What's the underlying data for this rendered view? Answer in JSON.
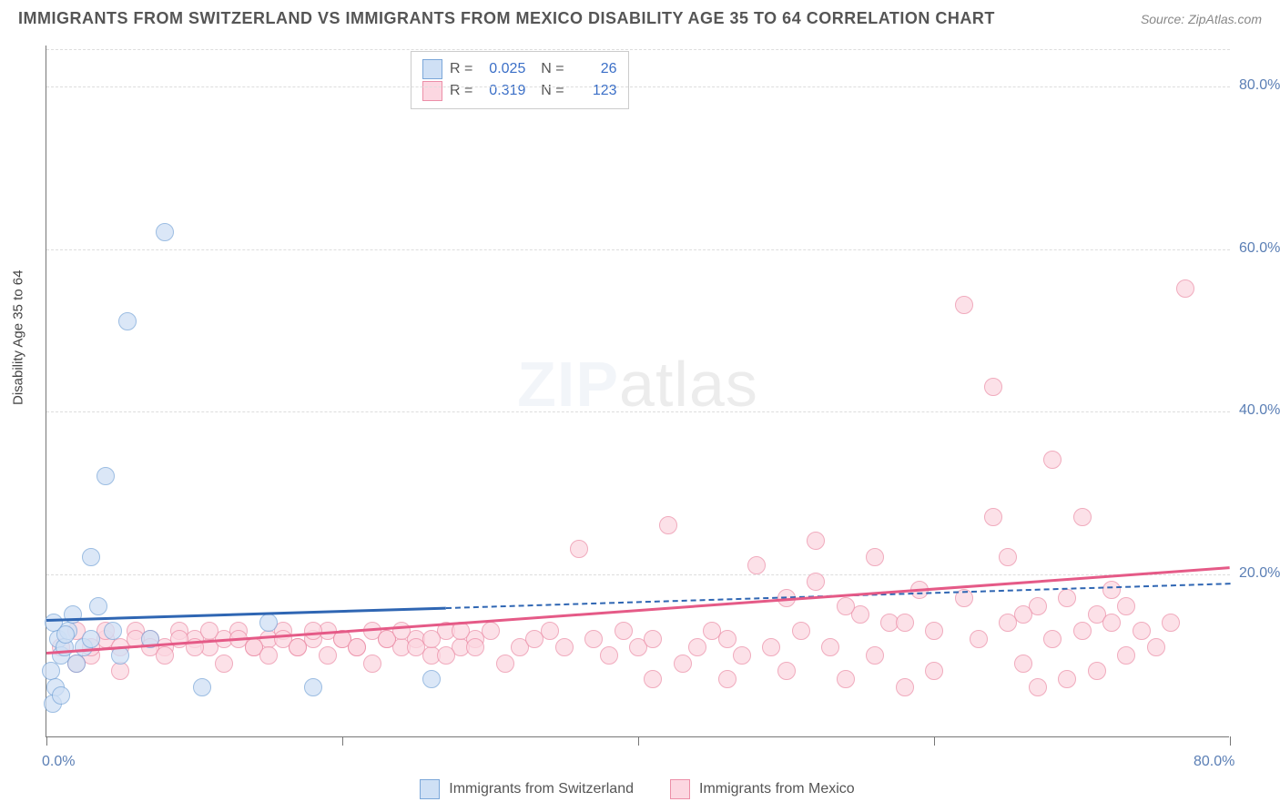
{
  "header": {
    "title": "IMMIGRANTS FROM SWITZERLAND VS IMMIGRANTS FROM MEXICO DISABILITY AGE 35 TO 64 CORRELATION CHART",
    "source": "Source: ZipAtlas.com"
  },
  "chart": {
    "type": "scatter",
    "watermark": "ZIPatlas",
    "y_axis_label": "Disability Age 35 to 64",
    "xlim": [
      0,
      80
    ],
    "ylim": [
      0,
      85
    ],
    "x_ticks": [
      0,
      20,
      40,
      60,
      80
    ],
    "x_tick_labels": [
      "0.0%",
      "",
      "",
      "",
      "80.0%"
    ],
    "y_ticks": [
      20,
      40,
      60,
      80
    ],
    "y_tick_labels": [
      "20.0%",
      "40.0%",
      "60.0%",
      "80.0%"
    ],
    "grid_color": "#dddddd",
    "background_color": "#ffffff",
    "axis_color": "#777777",
    "tick_label_color": "#5b7fb5",
    "marker_radius": 10,
    "marker_stroke_width": 1.5,
    "series": {
      "switzerland": {
        "label": "Immigrants from Switzerland",
        "fill": "#cfe0f5",
        "stroke": "#7ba7d9",
        "opacity": 0.75,
        "points": [
          [
            0.5,
            14
          ],
          [
            0.8,
            12
          ],
          [
            1.0,
            10
          ],
          [
            1.2,
            11
          ],
          [
            0.3,
            8
          ],
          [
            1.5,
            13
          ],
          [
            2.0,
            9
          ],
          [
            0.6,
            6
          ],
          [
            1.8,
            15
          ],
          [
            2.5,
            11
          ],
          [
            3.0,
            12
          ],
          [
            0.4,
            4
          ],
          [
            1.0,
            5
          ],
          [
            3.5,
            16
          ],
          [
            3.0,
            22
          ],
          [
            4.0,
            32
          ],
          [
            5.5,
            51
          ],
          [
            8.0,
            62
          ],
          [
            4.5,
            13
          ],
          [
            5.0,
            10
          ],
          [
            7.0,
            12
          ],
          [
            10.5,
            6
          ],
          [
            15.0,
            14
          ],
          [
            18.0,
            6
          ],
          [
            26.0,
            7
          ],
          [
            1.3,
            12.5
          ]
        ],
        "trend": {
          "x1": 0,
          "y1": 14.5,
          "x2": 27,
          "y2": 16.0,
          "color": "#2f66b3",
          "dash_to_x": 80,
          "dash_to_y": 19.0
        }
      },
      "mexico": {
        "label": "Immigrants from Mexico",
        "fill": "#fcd7e1",
        "stroke": "#ec8fa8",
        "opacity": 0.75,
        "points": [
          [
            1,
            11
          ],
          [
            2,
            13
          ],
          [
            3,
            10
          ],
          [
            4,
            12
          ],
          [
            5,
            11
          ],
          [
            6,
            13
          ],
          [
            7,
            12
          ],
          [
            8,
            11
          ],
          [
            9,
            13
          ],
          [
            10,
            12
          ],
          [
            11,
            11
          ],
          [
            12,
            12
          ],
          [
            13,
            13
          ],
          [
            14,
            11
          ],
          [
            15,
            12
          ],
          [
            16,
            13
          ],
          [
            17,
            11
          ],
          [
            18,
            12
          ],
          [
            19,
            13
          ],
          [
            20,
            12
          ],
          [
            21,
            11
          ],
          [
            22,
            13
          ],
          [
            23,
            12
          ],
          [
            24,
            11
          ],
          [
            25,
            12
          ],
          [
            26,
            10
          ],
          [
            27,
            13
          ],
          [
            28,
            11
          ],
          [
            29,
            12
          ],
          [
            30,
            13
          ],
          [
            31,
            9
          ],
          [
            32,
            11
          ],
          [
            33,
            12
          ],
          [
            34,
            13
          ],
          [
            35,
            11
          ],
          [
            36,
            23
          ],
          [
            37,
            12
          ],
          [
            38,
            10
          ],
          [
            39,
            13
          ],
          [
            40,
            11
          ],
          [
            41,
            12
          ],
          [
            42,
            26
          ],
          [
            43,
            9
          ],
          [
            44,
            11
          ],
          [
            45,
            13
          ],
          [
            46,
            12
          ],
          [
            47,
            10
          ],
          [
            48,
            21
          ],
          [
            49,
            11
          ],
          [
            50,
            8
          ],
          [
            51,
            13
          ],
          [
            52,
            19
          ],
          [
            53,
            11
          ],
          [
            54,
            7
          ],
          [
            55,
            15
          ],
          [
            56,
            22
          ],
          [
            57,
            14
          ],
          [
            58,
            6
          ],
          [
            59,
            18
          ],
          [
            60,
            13
          ],
          [
            41,
            7
          ],
          [
            46,
            7
          ],
          [
            50,
            17
          ],
          [
            52,
            24
          ],
          [
            54,
            16
          ],
          [
            56,
            10
          ],
          [
            58,
            14
          ],
          [
            60,
            8
          ],
          [
            62,
            17
          ],
          [
            63,
            12
          ],
          [
            64,
            27
          ],
          [
            65,
            14
          ],
          [
            66,
            9
          ],
          [
            67,
            16
          ],
          [
            68,
            34
          ],
          [
            69,
            7
          ],
          [
            70,
            13
          ],
          [
            71,
            15
          ],
          [
            72,
            18
          ],
          [
            73,
            10
          ],
          [
            62,
            53
          ],
          [
            64,
            43
          ],
          [
            65,
            22
          ],
          [
            66,
            15
          ],
          [
            67,
            6
          ],
          [
            68,
            12
          ],
          [
            69,
            17
          ],
          [
            70,
            27
          ],
          [
            71,
            8
          ],
          [
            72,
            14
          ],
          [
            73,
            16
          ],
          [
            74,
            13
          ],
          [
            75,
            11
          ],
          [
            76,
            14
          ],
          [
            77,
            55
          ],
          [
            2,
            9
          ],
          [
            3,
            11
          ],
          [
            4,
            13
          ],
          [
            5,
            8
          ],
          [
            6,
            12
          ],
          [
            7,
            11
          ],
          [
            8,
            10
          ],
          [
            9,
            12
          ],
          [
            10,
            11
          ],
          [
            11,
            13
          ],
          [
            12,
            9
          ],
          [
            13,
            12
          ],
          [
            14,
            11
          ],
          [
            15,
            10
          ],
          [
            16,
            12
          ],
          [
            17,
            11
          ],
          [
            18,
            13
          ],
          [
            19,
            10
          ],
          [
            20,
            12
          ],
          [
            21,
            11
          ],
          [
            22,
            9
          ],
          [
            23,
            12
          ],
          [
            24,
            13
          ],
          [
            25,
            11
          ],
          [
            26,
            12
          ],
          [
            27,
            10
          ],
          [
            28,
            13
          ],
          [
            29,
            11
          ]
        ],
        "trend": {
          "x1": 0,
          "y1": 10.5,
          "x2": 80,
          "y2": 21.0,
          "color": "#e55a87"
        }
      }
    },
    "stat_box": {
      "rows": [
        {
          "swatch_fill": "#cfe0f5",
          "swatch_stroke": "#7ba7d9",
          "r": "0.025",
          "n": "26"
        },
        {
          "swatch_fill": "#fcd7e1",
          "swatch_stroke": "#ec8fa8",
          "r": "0.319",
          "n": "123"
        }
      ]
    },
    "bottom_legend": [
      {
        "swatch_fill": "#cfe0f5",
        "swatch_stroke": "#7ba7d9",
        "label": "Immigrants from Switzerland"
      },
      {
        "swatch_fill": "#fcd7e1",
        "swatch_stroke": "#ec8fa8",
        "label": "Immigrants from Mexico"
      }
    ]
  }
}
